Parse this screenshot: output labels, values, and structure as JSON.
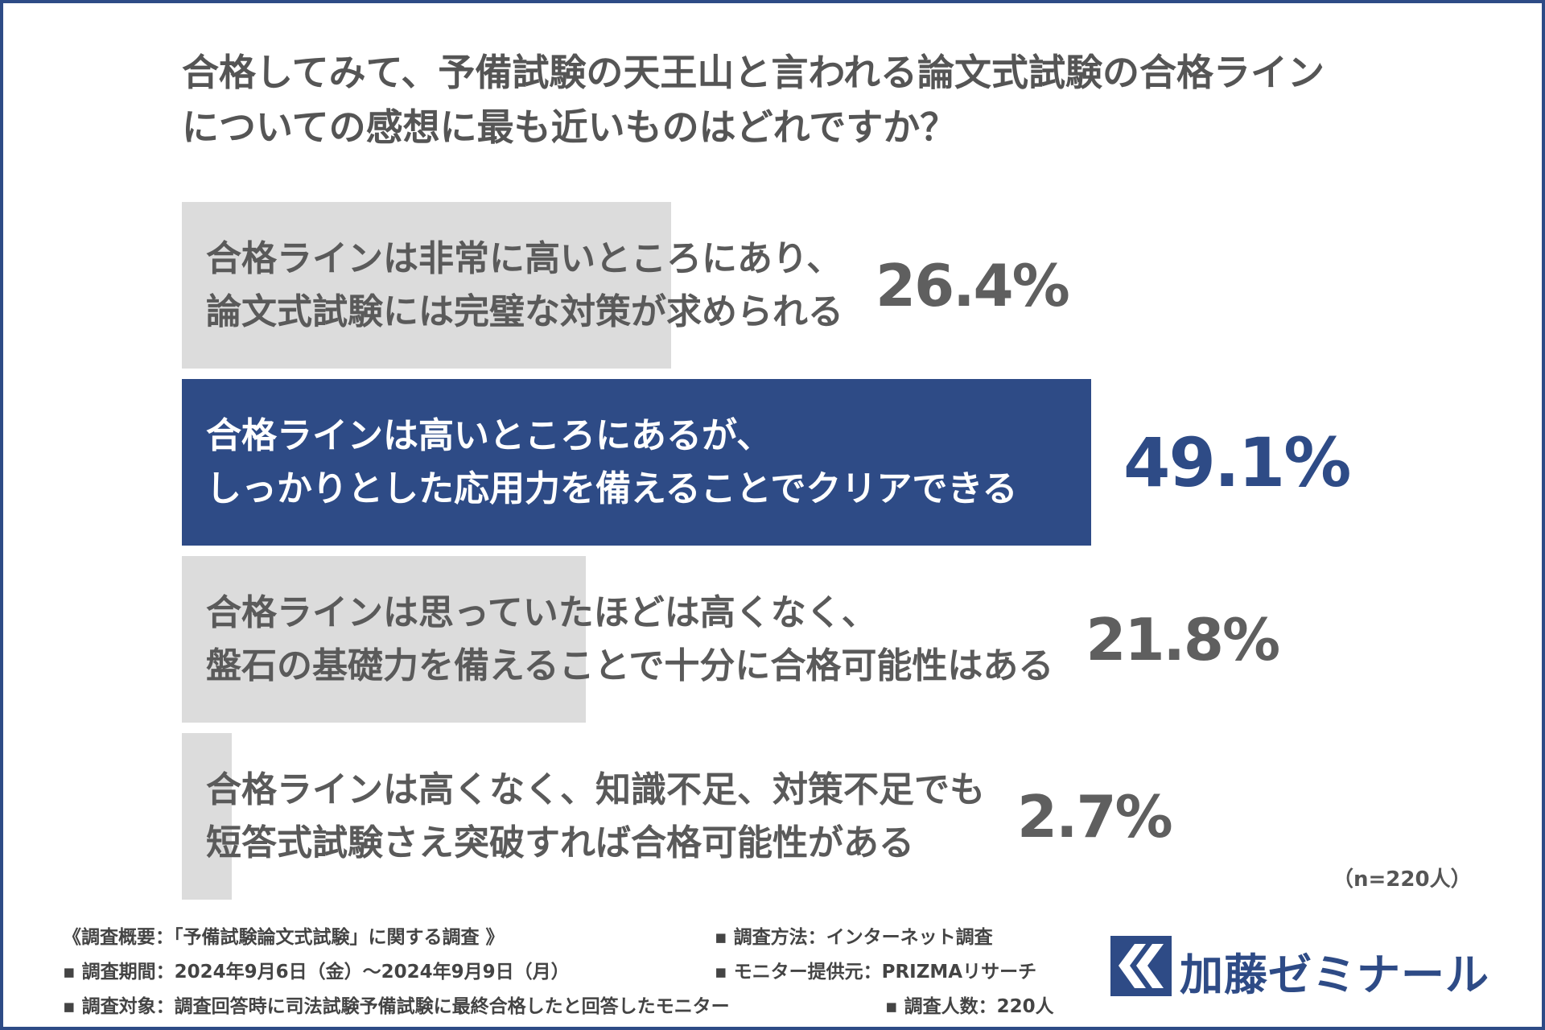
{
  "title": {
    "line1": "合格してみて、予備試験の天王山と言われる論文式試験の合格ライン",
    "line2": "についての感想に最も近いものはどれですか？"
  },
  "chart_data": {
    "type": "bar",
    "orientation": "horizontal",
    "xlim": [
      0,
      60
    ],
    "categories": [
      {
        "line1": "合格ラインは非常に高いところにあり、",
        "line2": "論文式試験には完璧な対策が求められる"
      },
      {
        "line1": "合格ラインは高いところにあるが、",
        "line2": "しっかりとした応用力を備えることでクリアできる"
      },
      {
        "line1": "合格ラインは思っていたほどは高くなく、",
        "line2": "盤石の基礎力を備えることで十分に合格可能性はある"
      },
      {
        "line1": "合格ラインは高くなく、知識不足、対策不足でも",
        "line2": "短答式試験さえ突破すれば合格可能性がある"
      }
    ],
    "values": [
      26.4,
      49.1,
      21.8,
      2.7
    ],
    "value_labels": [
      "26.4%",
      "49.1%",
      "21.8%",
      "2.7%"
    ],
    "highlight_index": 1,
    "colors": {
      "bar": "#dcdcdc",
      "highlight": "#2e4b86",
      "text": "#5a5a5a"
    },
    "n_note": "（n=220人）"
  },
  "survey": {
    "overview": "《調査概要：「予備試験論文式試験」に関する調査 》",
    "period": "▪ 調査期間：2024年9月6日（金）〜2024年9月9日（月）",
    "target": "▪ 調査対象：調査回答時に司法試験予備試験に最終合格したと回答したモニター",
    "method": "▪ 調査方法：インターネット調査",
    "provider": "▪ モニター提供元：PRIZMAリサーチ",
    "count": "▪ 調査人数：220人"
  },
  "logo": {
    "text": "加藤ゼミナール",
    "icon": "double-chevron-logo-icon",
    "color": "#2e4b86"
  }
}
